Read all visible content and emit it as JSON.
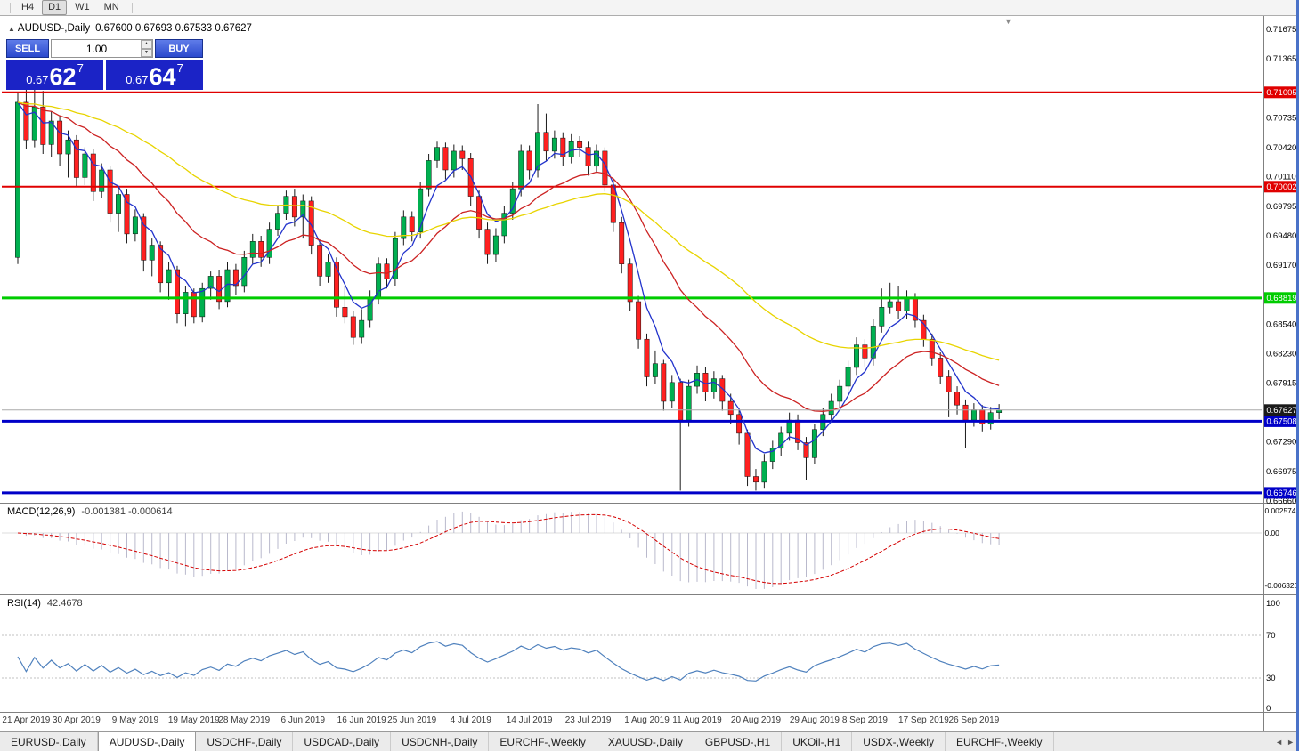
{
  "window": {
    "toolbar": {
      "timeframes": [
        "H4",
        "D1",
        "W1",
        "MN"
      ],
      "active": "D1"
    }
  },
  "chart": {
    "title": "AUDUSD-,Daily",
    "ohlc_text": "0.67600 0.67693 0.67533 0.67627",
    "shift_marker": "▼",
    "trade_panel": {
      "sell_label": "SELL",
      "buy_label": "BUY",
      "volume": "1.00",
      "sell_price": {
        "big_prefix": "0.67",
        "main": "62",
        "sup": "7"
      },
      "buy_price": {
        "big_prefix": "0.67",
        "main": "64",
        "sup": "7"
      }
    }
  },
  "chart_data": {
    "type": "candlestick",
    "symbol": "AUDUSD",
    "timeframe": "Daily",
    "colors": {
      "bull": "#00b050",
      "bear": "#ff2020",
      "wick": "#1a1a1a",
      "macd_bar": "#b9b9cc",
      "macd_signal": "#d40000",
      "rsi_line": "#4f81bd",
      "current_tag": "#1a1a1a"
    },
    "price_axis": {
      "min": 0.6666,
      "max": 0.71675,
      "ticks": [
        "0.71675",
        "0.71365",
        "0.70735",
        "0.70420",
        "0.70110",
        "0.69795",
        "0.69480",
        "0.69170",
        "0.68540",
        "0.68230",
        "0.67915",
        "0.67290",
        "0.66975",
        "0.66660"
      ]
    },
    "hlines": [
      {
        "value": 0.71005,
        "label": "0.71005",
        "color": "#e00000",
        "width": 2
      },
      {
        "value": 0.70002,
        "label": "0.70002",
        "color": "#e00000",
        "width": 2
      },
      {
        "value": 0.68819,
        "label": "0.68819",
        "color": "#00cc00",
        "width": 3
      },
      {
        "value": 0.67508,
        "label": "0.67508",
        "color": "#0000c8",
        "width": 3
      },
      {
        "value": 0.66746,
        "label": "0.66746",
        "color": "#0000c8",
        "width": 3
      }
    ],
    "current_price": {
      "value": 0.67627,
      "label": "0.67627"
    },
    "ma": [
      {
        "name": "fast",
        "period": 5,
        "color": "#2233cc"
      },
      {
        "name": "mid",
        "period": 18,
        "color": "#cc2222"
      },
      {
        "name": "slow",
        "period": 45,
        "color": "#e8d400"
      }
    ],
    "candles": [
      [
        0.6925,
        0.71,
        0.6918,
        0.709
      ],
      [
        0.709,
        0.7105,
        0.704,
        0.705
      ],
      [
        0.705,
        0.7107,
        0.7042,
        0.7085
      ],
      [
        0.7085,
        0.7102,
        0.7035,
        0.7045
      ],
      [
        0.7045,
        0.708,
        0.7032,
        0.707
      ],
      [
        0.707,
        0.7076,
        0.7022,
        0.7035
      ],
      [
        0.7035,
        0.706,
        0.701,
        0.705
      ],
      [
        0.705,
        0.7055,
        0.7,
        0.701
      ],
      [
        0.701,
        0.7042,
        0.7002,
        0.7035
      ],
      [
        0.7035,
        0.704,
        0.6985,
        0.6995
      ],
      [
        0.6995,
        0.7025,
        0.6988,
        0.7018
      ],
      [
        0.7018,
        0.7022,
        0.6962,
        0.6972
      ],
      [
        0.6972,
        0.7,
        0.6952,
        0.6992
      ],
      [
        0.6992,
        0.6998,
        0.694,
        0.695
      ],
      [
        0.695,
        0.6976,
        0.6942,
        0.6968
      ],
      [
        0.6968,
        0.6972,
        0.691,
        0.6922
      ],
      [
        0.6922,
        0.6945,
        0.6905,
        0.6938
      ],
      [
        0.6938,
        0.6942,
        0.6888,
        0.6898
      ],
      [
        0.6898,
        0.692,
        0.688,
        0.6912
      ],
      [
        0.6912,
        0.6916,
        0.6855,
        0.6865
      ],
      [
        0.6865,
        0.6895,
        0.6852,
        0.6888
      ],
      [
        0.6888,
        0.6892,
        0.6855,
        0.6862
      ],
      [
        0.6862,
        0.6898,
        0.6856,
        0.6892
      ],
      [
        0.6892,
        0.691,
        0.688,
        0.6905
      ],
      [
        0.6905,
        0.6912,
        0.687,
        0.6878
      ],
      [
        0.6878,
        0.692,
        0.6872,
        0.6912
      ],
      [
        0.6912,
        0.6918,
        0.6885,
        0.6895
      ],
      [
        0.6895,
        0.6932,
        0.6888,
        0.6925
      ],
      [
        0.6925,
        0.695,
        0.6918,
        0.6942
      ],
      [
        0.6942,
        0.6948,
        0.6915,
        0.6925
      ],
      [
        0.6925,
        0.6962,
        0.6918,
        0.6955
      ],
      [
        0.6955,
        0.698,
        0.6948,
        0.6972
      ],
      [
        0.6972,
        0.6996,
        0.6965,
        0.699
      ],
      [
        0.699,
        0.6998,
        0.6958,
        0.6968
      ],
      [
        0.6968,
        0.6992,
        0.6945,
        0.6985
      ],
      [
        0.6985,
        0.699,
        0.6928,
        0.6938
      ],
      [
        0.6938,
        0.6944,
        0.6895,
        0.6905
      ],
      [
        0.6905,
        0.6928,
        0.6898,
        0.692
      ],
      [
        0.692,
        0.6925,
        0.6862,
        0.6872
      ],
      [
        0.6872,
        0.6895,
        0.6855,
        0.6862
      ],
      [
        0.6862,
        0.6868,
        0.6832,
        0.684
      ],
      [
        0.684,
        0.687,
        0.6833,
        0.6858
      ],
      [
        0.6858,
        0.689,
        0.685,
        0.6882
      ],
      [
        0.6882,
        0.6925,
        0.6875,
        0.6918
      ],
      [
        0.6918,
        0.6924,
        0.6892,
        0.6902
      ],
      [
        0.6902,
        0.6952,
        0.6895,
        0.6945
      ],
      [
        0.6945,
        0.6975,
        0.6938,
        0.6968
      ],
      [
        0.6968,
        0.6974,
        0.6942,
        0.6952
      ],
      [
        0.6952,
        0.7005,
        0.6945,
        0.6998
      ],
      [
        0.6998,
        0.7035,
        0.699,
        0.7028
      ],
      [
        0.7028,
        0.7048,
        0.702,
        0.7042
      ],
      [
        0.7042,
        0.7047,
        0.7008,
        0.7018
      ],
      [
        0.7018,
        0.7045,
        0.701,
        0.7038
      ],
      [
        0.7038,
        0.7044,
        0.7018,
        0.703
      ],
      [
        0.703,
        0.7036,
        0.698,
        0.699
      ],
      [
        0.699,
        0.6996,
        0.6945,
        0.6955
      ],
      [
        0.6955,
        0.6962,
        0.6918,
        0.6928
      ],
      [
        0.6928,
        0.6956,
        0.692,
        0.6948
      ],
      [
        0.6948,
        0.698,
        0.694,
        0.6972
      ],
      [
        0.6972,
        0.7005,
        0.6965,
        0.6998
      ],
      [
        0.6998,
        0.7045,
        0.699,
        0.7038
      ],
      [
        0.7038,
        0.7044,
        0.7008,
        0.7018
      ],
      [
        0.7018,
        0.7088,
        0.701,
        0.7058
      ],
      [
        0.7058,
        0.7078,
        0.7028,
        0.7038
      ],
      [
        0.7038,
        0.706,
        0.703,
        0.7052
      ],
      [
        0.7052,
        0.7058,
        0.7022,
        0.7032
      ],
      [
        0.7032,
        0.7056,
        0.7025,
        0.7048
      ],
      [
        0.7048,
        0.7054,
        0.7032,
        0.7042
      ],
      [
        0.7042,
        0.7048,
        0.7012,
        0.7022
      ],
      [
        0.7022,
        0.7045,
        0.7015,
        0.7038
      ],
      [
        0.7038,
        0.7042,
        0.6995,
        0.7002
      ],
      [
        0.7002,
        0.7008,
        0.6952,
        0.6962
      ],
      [
        0.6962,
        0.6968,
        0.6908,
        0.6918
      ],
      [
        0.6918,
        0.6924,
        0.6868,
        0.6878
      ],
      [
        0.6878,
        0.6884,
        0.6828,
        0.6838
      ],
      [
        0.6838,
        0.6844,
        0.6788,
        0.6798
      ],
      [
        0.6798,
        0.6826,
        0.679,
        0.6812
      ],
      [
        0.6812,
        0.6816,
        0.6762,
        0.6772
      ],
      [
        0.6772,
        0.68,
        0.6765,
        0.6792
      ],
      [
        0.6792,
        0.6796,
        0.6677,
        0.6752
      ],
      [
        0.6752,
        0.6795,
        0.6745,
        0.6788
      ],
      [
        0.6788,
        0.681,
        0.678,
        0.6802
      ],
      [
        0.6802,
        0.6808,
        0.6772,
        0.6782
      ],
      [
        0.6782,
        0.6804,
        0.6775,
        0.6796
      ],
      [
        0.6796,
        0.68,
        0.6762,
        0.6772
      ],
      [
        0.6772,
        0.678,
        0.6748,
        0.6758
      ],
      [
        0.6758,
        0.6764,
        0.6726,
        0.6738
      ],
      [
        0.6738,
        0.6742,
        0.6682,
        0.6692
      ],
      [
        0.6692,
        0.67,
        0.6677,
        0.6686
      ],
      [
        0.6686,
        0.6716,
        0.668,
        0.6708
      ],
      [
        0.6708,
        0.673,
        0.67,
        0.6722
      ],
      [
        0.6722,
        0.6745,
        0.6714,
        0.6738
      ],
      [
        0.6738,
        0.676,
        0.673,
        0.6752
      ],
      [
        0.6752,
        0.6758,
        0.672,
        0.6728
      ],
      [
        0.6728,
        0.6734,
        0.6688,
        0.6712
      ],
      [
        0.6712,
        0.6748,
        0.6705,
        0.6742
      ],
      [
        0.6742,
        0.6765,
        0.6735,
        0.6758
      ],
      [
        0.6758,
        0.678,
        0.675,
        0.6772
      ],
      [
        0.6772,
        0.6795,
        0.6765,
        0.6788
      ],
      [
        0.6788,
        0.6815,
        0.678,
        0.6808
      ],
      [
        0.6808,
        0.684,
        0.68,
        0.6832
      ],
      [
        0.6832,
        0.6838,
        0.6808,
        0.6818
      ],
      [
        0.6818,
        0.686,
        0.681,
        0.6852
      ],
      [
        0.6852,
        0.6892,
        0.6845,
        0.6872
      ],
      [
        0.6872,
        0.6898,
        0.6865,
        0.6878
      ],
      [
        0.6878,
        0.6895,
        0.686,
        0.6868
      ],
      [
        0.6868,
        0.689,
        0.686,
        0.6882
      ],
      [
        0.6882,
        0.6887,
        0.685,
        0.6858
      ],
      [
        0.6858,
        0.6864,
        0.683,
        0.6838
      ],
      [
        0.6838,
        0.6844,
        0.681,
        0.6818
      ],
      [
        0.6818,
        0.6824,
        0.679,
        0.6798
      ],
      [
        0.6798,
        0.6805,
        0.6755,
        0.6782
      ],
      [
        0.6782,
        0.6788,
        0.6758,
        0.6768
      ],
      [
        0.6768,
        0.6774,
        0.6722,
        0.6752
      ],
      [
        0.6752,
        0.677,
        0.6745,
        0.6763
      ],
      [
        0.6763,
        0.6768,
        0.674,
        0.6748
      ],
      [
        0.6748,
        0.6766,
        0.6742,
        0.676
      ],
      [
        0.676,
        0.6769,
        0.6753,
        0.67627
      ]
    ],
    "dates": [
      {
        "i": 1,
        "label": "21 Apr 2019"
      },
      {
        "i": 7,
        "label": "30 Apr 2019"
      },
      {
        "i": 14,
        "label": "9 May 2019"
      },
      {
        "i": 21,
        "label": "19 May 2019"
      },
      {
        "i": 27,
        "label": "28 May 2019"
      },
      {
        "i": 34,
        "label": "6 Jun 2019"
      },
      {
        "i": 41,
        "label": "16 Jun 2019"
      },
      {
        "i": 47,
        "label": "25 Jun 2019"
      },
      {
        "i": 54,
        "label": "4 Jul 2019"
      },
      {
        "i": 61,
        "label": "14 Jul 2019"
      },
      {
        "i": 68,
        "label": "23 Jul 2019"
      },
      {
        "i": 75,
        "label": "1 Aug 2019"
      },
      {
        "i": 81,
        "label": "11 Aug 2019"
      },
      {
        "i": 88,
        "label": "20 Aug 2019"
      },
      {
        "i": 95,
        "label": "29 Aug 2019"
      },
      {
        "i": 101,
        "label": "8 Sep 2019"
      },
      {
        "i": 108,
        "label": "17 Sep 2019"
      },
      {
        "i": 114,
        "label": "26 Sep 2019"
      }
    ],
    "macd": {
      "label": "MACD(12,26,9)",
      "values_text": "-0.001381 -0.000614",
      "fast": 12,
      "slow": 26,
      "signal": 9,
      "axis": [
        "0.002574",
        "0.00",
        "-0.006326"
      ]
    },
    "rsi": {
      "label": "RSI(14)",
      "value_text": "42.4678",
      "period": 14,
      "axis": [
        "100",
        "70",
        "30",
        "0"
      ],
      "levels": [
        70,
        30
      ]
    }
  },
  "tabs": [
    {
      "label": "EURUSD-,Daily",
      "active": false
    },
    {
      "label": "AUDUSD-,Daily",
      "active": true
    },
    {
      "label": "USDCHF-,Daily",
      "active": false
    },
    {
      "label": "USDCAD-,Daily",
      "active": false
    },
    {
      "label": "USDCNH-,Daily",
      "active": false
    },
    {
      "label": "EURCHF-,Weekly",
      "active": false
    },
    {
      "label": "XAUUSD-,Daily",
      "active": false
    },
    {
      "label": "GBPUSD-,H1",
      "active": false
    },
    {
      "label": "UKOil-,H1",
      "active": false
    },
    {
      "label": "USDX-,Weekly",
      "active": false
    },
    {
      "label": "EURCHF-,Weekly",
      "active": false
    }
  ]
}
